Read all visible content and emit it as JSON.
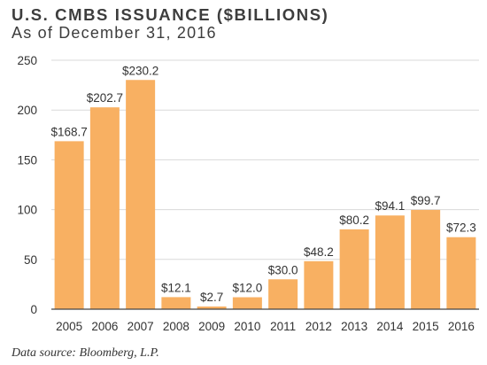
{
  "title": "U.S. CMBS ISSUANCE ($BILLIONS)",
  "subtitle": "As of December 31, 2016",
  "source": "Data source: Bloomberg, L.P.",
  "colors": {
    "bar": "#f8b062",
    "gridline": "#d9d9d9",
    "axis": "#444444"
  },
  "chart_data": {
    "type": "bar",
    "categories": [
      "2005",
      "2006",
      "2007",
      "2008",
      "2009",
      "2010",
      "2011",
      "2012",
      "2013",
      "2014",
      "2015",
      "2016"
    ],
    "values": [
      168.7,
      202.7,
      230.2,
      12.1,
      2.7,
      12.0,
      30.0,
      48.2,
      80.2,
      94.1,
      99.7,
      72.3
    ],
    "data_labels": [
      "$168.7",
      "$202.7",
      "$230.2",
      "$12.1",
      "$2.7",
      "$12.0",
      "$30.0",
      "$48.2",
      "$80.2",
      "$94.1",
      "$99.7",
      "$72.3"
    ],
    "title": "U.S. CMBS ISSUANCE ($BILLIONS)",
    "xlabel": "",
    "ylabel": "",
    "ylim": [
      0,
      250
    ],
    "yticks": [
      0,
      50,
      100,
      150,
      200,
      250
    ],
    "grid": true,
    "legend": "none"
  }
}
